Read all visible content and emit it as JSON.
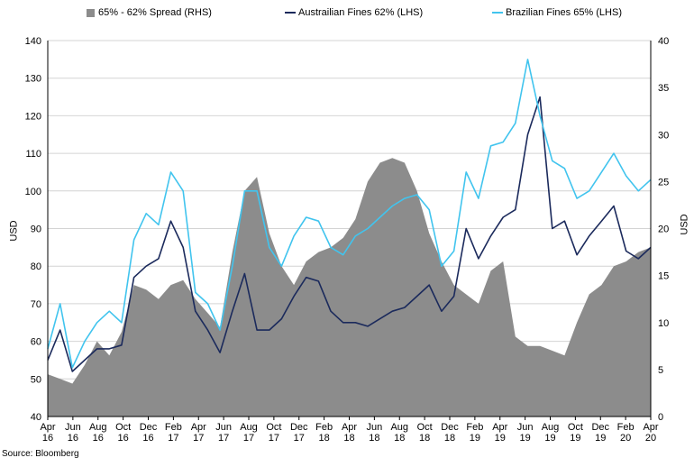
{
  "chart_data": {
    "type": "line",
    "title": "",
    "legend_position": "top",
    "grid": true,
    "x_ticks": [
      {
        "label": [
          "Apr",
          "16"
        ]
      },
      {
        "label": [
          "Jun",
          "16"
        ]
      },
      {
        "label": [
          "Aug",
          "16"
        ]
      },
      {
        "label": [
          "Oct",
          "16"
        ]
      },
      {
        "label": [
          "Dec",
          "16"
        ]
      },
      {
        "label": [
          "Feb",
          "17"
        ]
      },
      {
        "label": [
          "Apr",
          "17"
        ]
      },
      {
        "label": [
          "Jun",
          "17"
        ]
      },
      {
        "label": [
          "Aug",
          "17"
        ]
      },
      {
        "label": [
          "Oct",
          "17"
        ]
      },
      {
        "label": [
          "Dec",
          "17"
        ]
      },
      {
        "label": [
          "Feb",
          "18"
        ]
      },
      {
        "label": [
          "Apr",
          "18"
        ]
      },
      {
        "label": [
          "Jun",
          "18"
        ]
      },
      {
        "label": [
          "Aug",
          "18"
        ]
      },
      {
        "label": [
          "Oct",
          "18"
        ]
      },
      {
        "label": [
          "Dec",
          "18"
        ]
      },
      {
        "label": [
          "Feb",
          "19"
        ]
      },
      {
        "label": [
          "Apr",
          "19"
        ]
      },
      {
        "label": [
          "Jun",
          "19"
        ]
      },
      {
        "label": [
          "Aug",
          "19"
        ]
      },
      {
        "label": [
          "Oct",
          "19"
        ]
      },
      {
        "label": [
          "Dec",
          "19"
        ]
      },
      {
        "label": [
          "Feb",
          "20"
        ]
      },
      {
        "label": [
          "Apr",
          "20"
        ]
      }
    ],
    "ylabel_left": "USD",
    "ylabel_right": "USD",
    "ylim_left": [
      40,
      140
    ],
    "yticks_left": [
      40,
      50,
      60,
      70,
      80,
      90,
      100,
      110,
      120,
      130,
      140
    ],
    "ylim_right": [
      0,
      40
    ],
    "yticks_right": [
      0,
      5,
      10,
      15,
      20,
      25,
      30,
      35,
      40
    ],
    "x": [
      "2016-04",
      "2016-05",
      "2016-06",
      "2016-07",
      "2016-08",
      "2016-09",
      "2016-10",
      "2016-11",
      "2016-12",
      "2017-01",
      "2017-02",
      "2017-03",
      "2017-04",
      "2017-05",
      "2017-06",
      "2017-07",
      "2017-08",
      "2017-09",
      "2017-10",
      "2017-11",
      "2017-12",
      "2018-01",
      "2018-02",
      "2018-03",
      "2018-04",
      "2018-05",
      "2018-06",
      "2018-07",
      "2018-08",
      "2018-09",
      "2018-10",
      "2018-11",
      "2018-12",
      "2019-01",
      "2019-02",
      "2019-03",
      "2019-04",
      "2019-05",
      "2019-06",
      "2019-07",
      "2019-08",
      "2019-09",
      "2019-10",
      "2019-11",
      "2019-12",
      "2020-01",
      "2020-02",
      "2020-03",
      "2020-04",
      "2020-05"
    ],
    "series": [
      {
        "name": "65% - 62% Spread (RHS)",
        "axis": "right",
        "kind": "area",
        "color": "#8c8c8c",
        "values": [
          4.5,
          4.0,
          3.5,
          5.5,
          8.0,
          6.5,
          9.0,
          14.0,
          13.5,
          12.5,
          14.0,
          14.5,
          12.5,
          11.0,
          9.5,
          17.5,
          24.0,
          25.5,
          19.5,
          16.0,
          14.0,
          16.5,
          17.5,
          18.0,
          19.0,
          21.0,
          25.0,
          27.0,
          27.5,
          27.0,
          24.0,
          19.5,
          16.5,
          14.0,
          13.0,
          12.0,
          15.5,
          16.5,
          8.5,
          7.5,
          7.5,
          7.0,
          6.5,
          10.0,
          13.0,
          14.0,
          16.0,
          16.5,
          17.5,
          18.0
        ]
      },
      {
        "name": "Austrailian Fines 62% (LHS)",
        "axis": "left",
        "kind": "line",
        "color": "#1b2a5c",
        "values": [
          55,
          63,
          52,
          55,
          58,
          58,
          59,
          77,
          80,
          82,
          92,
          85,
          68,
          63,
          57,
          68,
          78,
          63,
          63,
          66,
          72,
          77,
          76,
          68,
          65,
          65,
          64,
          66,
          68,
          69,
          72,
          75,
          68,
          72,
          90,
          82,
          88,
          93,
          95,
          115,
          125,
          90,
          92,
          83,
          88,
          92,
          96,
          84,
          82,
          85
        ]
      },
      {
        "name": "Brazilian Fines 65% (LHS)",
        "axis": "left",
        "kind": "line",
        "color": "#41c4ee",
        "values": [
          58,
          70,
          53,
          60,
          65,
          68,
          65,
          87,
          94,
          91,
          105,
          100,
          73,
          70,
          63,
          80,
          100,
          100,
          85,
          80,
          88,
          93,
          92,
          85,
          83,
          88,
          90,
          93,
          96,
          98,
          99,
          95,
          80,
          84,
          105,
          98,
          112,
          113,
          118,
          135,
          120,
          108,
          106,
          98,
          100,
          105,
          110,
          104,
          100,
          103
        ]
      }
    ]
  },
  "source": "Source: Bloomberg"
}
